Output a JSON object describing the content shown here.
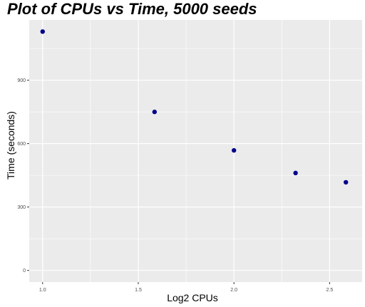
{
  "chart_data": {
    "type": "scatter",
    "title": "Plot of CPUs vs Time, 5000 seeds",
    "xlabel": "Log2 CPUs",
    "ylabel": "Time (seconds)",
    "x": [
      1.0,
      1.585,
      2.0,
      2.322,
      2.585
    ],
    "y": [
      1130,
      750,
      568,
      461,
      417
    ],
    "xlim": [
      0.93,
      2.67
    ],
    "ylim": [
      -55,
      1185
    ],
    "xticks": [
      1.0,
      1.5,
      2.0,
      2.5
    ],
    "xtick_labels": [
      "1.0",
      "1.5",
      "2.0",
      "2.5"
    ],
    "yticks": [
      0,
      300,
      600,
      900
    ],
    "ytick_labels": [
      "0",
      "300",
      "600",
      "900"
    ],
    "grid": true,
    "point_color": "#00008b",
    "panel_color": "#ebebeb"
  }
}
